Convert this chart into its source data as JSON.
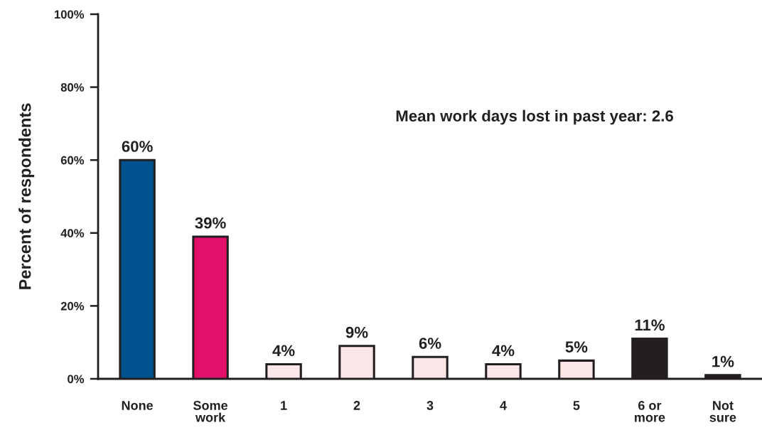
{
  "chart_data": {
    "type": "bar",
    "categories": [
      "None",
      "Some\nwork",
      "1",
      "2",
      "3",
      "4",
      "5",
      "6 or\nmore",
      "Not\nsure"
    ],
    "values": [
      60,
      39,
      4,
      9,
      6,
      4,
      5,
      11,
      1
    ],
    "colors": [
      "#00538f",
      "#e3106a",
      "#fbe6e8",
      "#fbe6e8",
      "#fbe6e8",
      "#fbe6e8",
      "#fbe6e8",
      "#231f20",
      "#231f20"
    ],
    "value_labels": [
      "60%",
      "39%",
      "4%",
      "9%",
      "6%",
      "4%",
      "5%",
      "11%",
      "1%"
    ],
    "ylabel": "Percent of respondents",
    "ylim": [
      0,
      100
    ],
    "yticks": [
      {
        "value": 0,
        "label": "0%"
      },
      {
        "value": 20,
        "label": "20%"
      },
      {
        "value": 40,
        "label": "40%"
      },
      {
        "value": 60,
        "label": "60%"
      },
      {
        "value": 80,
        "label": "80%"
      },
      {
        "value": 100,
        "label": "100%"
      }
    ],
    "annotations": [
      "Mean work days lost in past year: 2.6"
    ],
    "grid": false,
    "legend": false
  }
}
